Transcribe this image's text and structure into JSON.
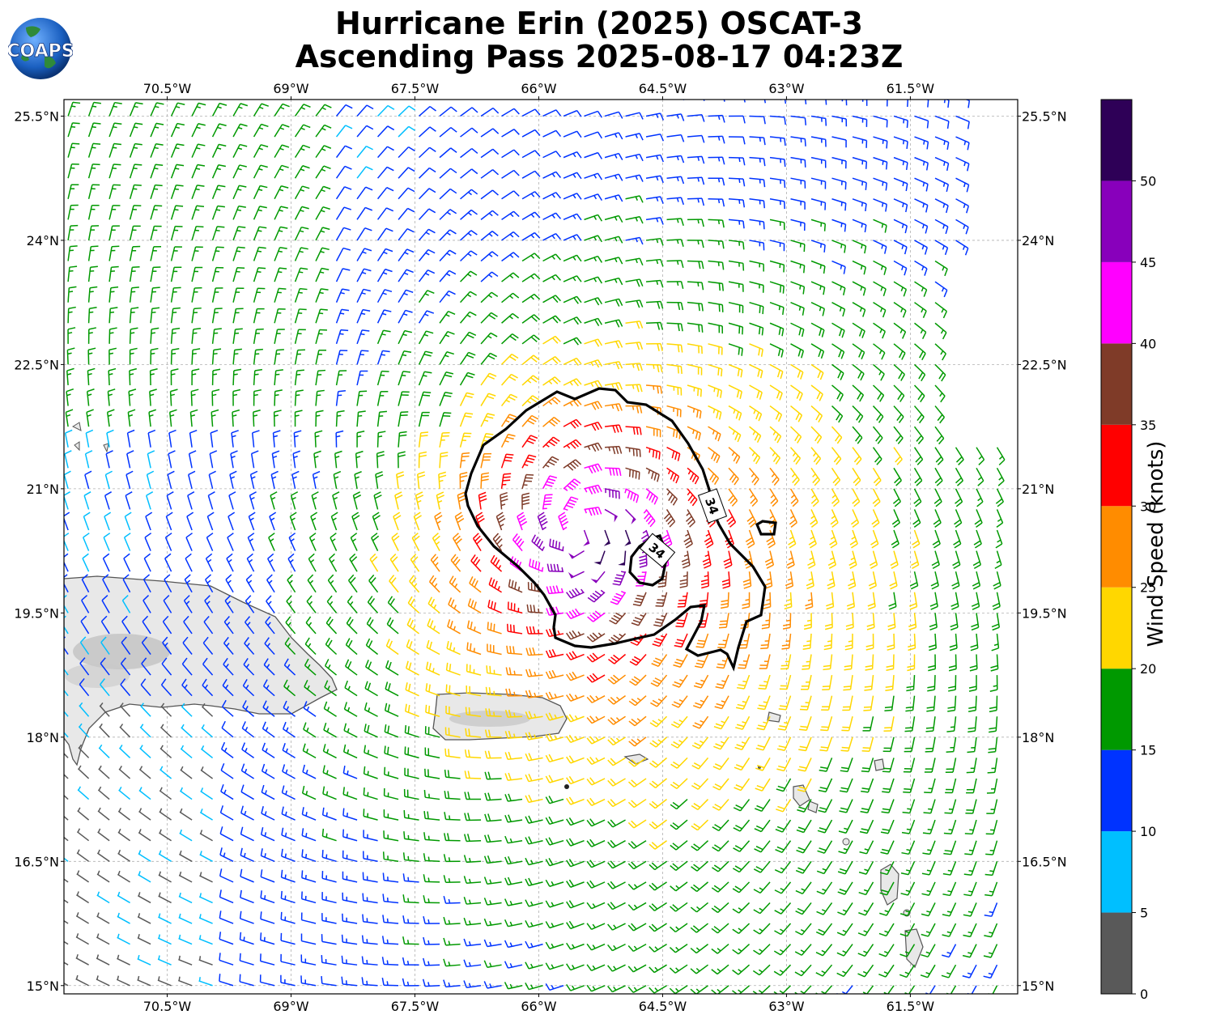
{
  "title": {
    "line1": "Hurricane Erin (2025) OSCAT-3",
    "line2": "Ascending Pass 2025-08-17 04:23Z"
  },
  "logo": {
    "text": "COAPS"
  },
  "map": {
    "lon_range": [
      -71.75,
      -60.2
    ],
    "lat_range": [
      14.9,
      25.7
    ],
    "lon_ticks": [
      {
        "value": -70.5,
        "label": "70.5°W"
      },
      {
        "value": -69.0,
        "label": "69°W"
      },
      {
        "value": -67.5,
        "label": "67.5°W"
      },
      {
        "value": -66.0,
        "label": "66°W"
      },
      {
        "value": -64.5,
        "label": "64.5°W"
      },
      {
        "value": -63.0,
        "label": "63°W"
      },
      {
        "value": -61.5,
        "label": "61.5°W"
      }
    ],
    "lat_ticks": [
      {
        "value": 25.5,
        "label": "25.5°N"
      },
      {
        "value": 24.0,
        "label": "24°N"
      },
      {
        "value": 22.5,
        "label": "22.5°N"
      },
      {
        "value": 21.0,
        "label": "21°N"
      },
      {
        "value": 19.5,
        "label": "19.5°N"
      },
      {
        "value": 18.0,
        "label": "18°N"
      },
      {
        "value": 16.5,
        "label": "16.5°N"
      },
      {
        "value": 15.0,
        "label": "15°N"
      }
    ],
    "grid": true,
    "storm_center": {
      "lon": -65.5,
      "lat": 20.5
    },
    "contour_label": "34"
  },
  "colorbar": {
    "label": "Wind Speed (knots)",
    "bins": [
      {
        "from": 0,
        "to": 5,
        "color": "#595959"
      },
      {
        "from": 5,
        "to": 10,
        "color": "#00bfff"
      },
      {
        "from": 10,
        "to": 15,
        "color": "#0033ff"
      },
      {
        "from": 15,
        "to": 20,
        "color": "#009900"
      },
      {
        "from": 20,
        "to": 25,
        "color": "#ffd700"
      },
      {
        "from": 25,
        "to": 30,
        "color": "#ff8c00"
      },
      {
        "from": 30,
        "to": 35,
        "color": "#ff0000"
      },
      {
        "from": 35,
        "to": 40,
        "color": "#7f3b28"
      },
      {
        "from": 40,
        "to": 45,
        "color": "#ff00ff"
      },
      {
        "from": 45,
        "to": 50,
        "color": "#8800bb"
      },
      {
        "from": 50,
        "to": 55,
        "color": "#2e0057"
      }
    ],
    "tick_labels": [
      "0",
      "5",
      "10",
      "15",
      "20",
      "25",
      "30",
      "35",
      "40",
      "45",
      "50"
    ]
  }
}
